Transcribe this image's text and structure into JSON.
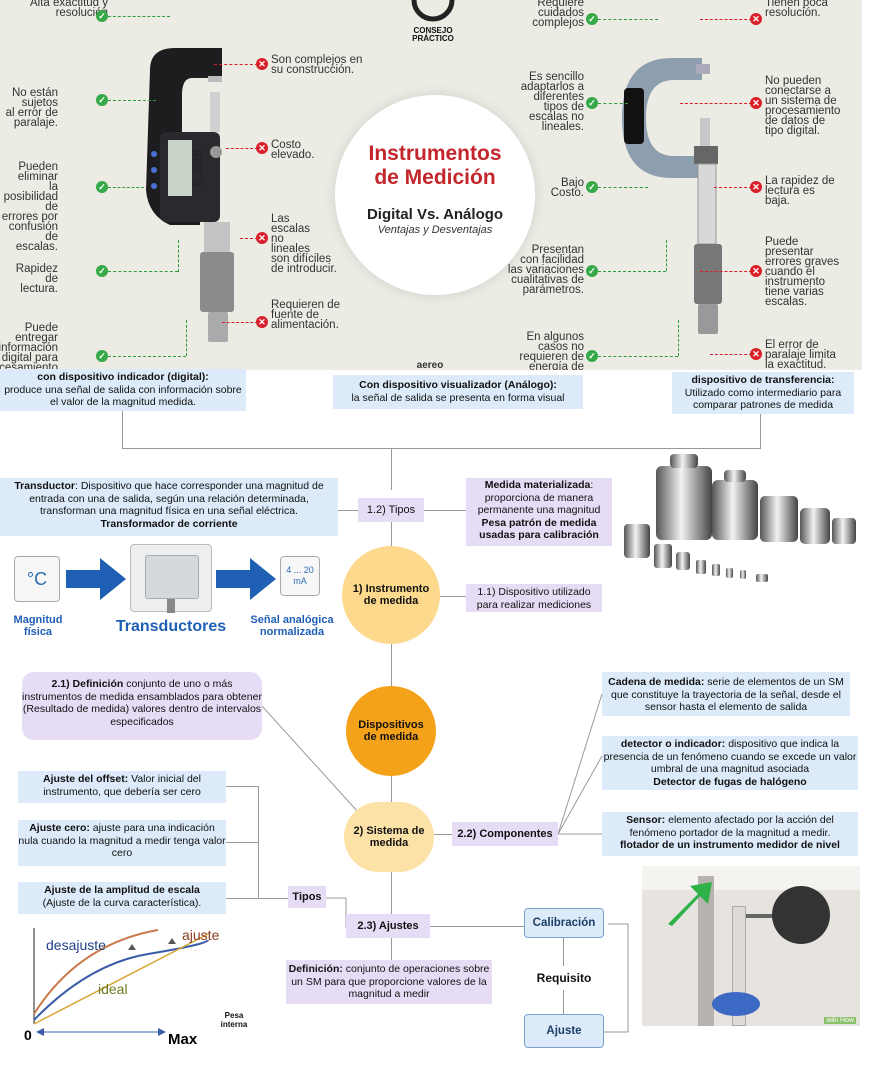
{
  "top": {
    "logo_line1": "CONSEJO",
    "logo_line2": "PRÁCTICO",
    "title_line1": "Instrumentos",
    "title_line2": "de Medición",
    "subtitle": "Digital Vs. Análogo",
    "subtitle2": "Ventajas y Desventajas",
    "brand": "aereo",
    "left_pros": [
      "Alta exactitud y\nresolución",
      "No están sujetos\nal error de\nparalaje.",
      "Pueden eliminar\nla posibilidad de\nerrores por\nconfusión de\nescalas.",
      "Rapidez de\nlectura.",
      "Puede entregar\ninformación\ndigital para\nprocesamiento"
    ],
    "left_cons": [
      "Son complejos en\nsu construcción.",
      "Costo\nelevado.",
      "Las\nescalas\nno\nlineales\nson difíciles\nde introducir.",
      "Requieren de\nfuente de\nalimentación."
    ],
    "right_pros": [
      "Requiere\ncuidados\ncomplejos",
      "Es sencillo\nadaptarlos a\ndiferentes\ntipos de\nescalas no\nlineales.",
      "Bajo\nCosto.",
      "Presentan\ncon facilidad\nlas variaciones\ncualitativas de\nparámetros.",
      "En algunos\ncasos no\nrequieren de\nenergía de"
    ],
    "right_cons": [
      "Tienen poca\nresolución.",
      "No pueden\nconectarse a\nun sistema de\nprocesamiento\nde datos de\ntipo digital.",
      "La rapidez de\nlectura es\nbaja.",
      "Puede\npresentar\nerrores graves\ncuando el\ninstrumento\ntiene varias\nescalas.",
      "El error de\nparalaje limita\nla exactitud."
    ],
    "digital_display": "0.580"
  },
  "row1": {
    "digital_title": "con dispositivo indicador (digital):",
    "digital_text": "produce una señal de salida con información sobre el valor de la magnitud medida.",
    "analog_title": "Con dispositivo visualizador (Análogo):",
    "analog_text": "la señal de salida se presenta en forma visual",
    "transfer_title": "dispositivo de transferencia:",
    "transfer_text": "Utilizado como intermediario para comparar patrones de medida"
  },
  "transductor": {
    "title": "Transductor",
    "text": ": Dispositivo que hace corresponder una magnitud de entrada con una de salida, según una relación determinada, transforman una magnitud física en una señal eléctrica.",
    "example": "Transformador de corriente",
    "temp_symbol": "°C",
    "output_scale_top": "4 ... 20",
    "output_scale_unit": "mA",
    "label_left": "Magnitud\nfísica",
    "label_center": "Transductores",
    "label_right": "Señal analógica\nnormalizada"
  },
  "tipos": {
    "label": "1.2) Tipos"
  },
  "medida": {
    "title": "Medida materializada",
    "text": ": proporciona de manera permanente una magnitud",
    "extra": "Pesa patrón de medida usadas para calibración"
  },
  "instrumento": {
    "label": "1) Instrumento de medida"
  },
  "dispositivo_util": {
    "num": "1.1)",
    "text": " Dispositivo utilizado para realizar mediciones"
  },
  "dispositivos": {
    "label": "Dispositivos de medida"
  },
  "definicion": {
    "title": "2.1) Definición",
    "text": " conjunto de uno o más instrumentos de medida ensamblados para obtener (Resultado de medida) valores dentro de intervalos especificados"
  },
  "cadena": {
    "title": "Cadena de medida:",
    "text": " serie de elementos de un SM que constituye la trayectoria de la señal, desde el sensor hasta el elemento de salida"
  },
  "detector": {
    "title": "detector o  indicador:",
    "text": " dispositivo que indica la presencia de un fenómeno cuando se excede un valor umbral de una magnitud asociada",
    "extra": "Detector de fugas de halógeno"
  },
  "sensor": {
    "title": "Sensor:",
    "text": " elemento afectado por la acción del fenómeno portador de la magnitud a medir.",
    "extra": "flotador de un instrumento medidor de nivel"
  },
  "sistema": {
    "label": "2) Sistema de medida"
  },
  "componentes": {
    "label": "2.2) Componentes"
  },
  "offset": {
    "title": "Ajuste del offset:",
    "text": " Valor inicial del instrumento, que debería ser cero"
  },
  "cero": {
    "title": "Ajuste cero:",
    "text": " ajuste para una indicación nula cuando la magnitud a medir tenga valor cero"
  },
  "amplitud": {
    "title": "Ajuste de la amplitud de escala",
    "text": "(Ajuste de la curva característica)."
  },
  "tipos2": {
    "label": "Tipos"
  },
  "ajustes": {
    "label": "2.3) Ajustes"
  },
  "definicion2": {
    "title": "Definición:",
    "text": " conjunto de operaciones sobre un SM para que proporcione valores de la magnitud a medir"
  },
  "calibracion": {
    "label": "Calibración"
  },
  "requisito": {
    "label": "Requisito"
  },
  "ajuste_box": {
    "label": "Ajuste"
  },
  "graph": {
    "desajuste": "desajuste",
    "ajuste": "ajuste",
    "ideal": "ideal",
    "zero": "0",
    "max": "Max"
  },
  "pesa": {
    "label": "Pesa\ninterna"
  },
  "wikihow": "wiki How"
}
